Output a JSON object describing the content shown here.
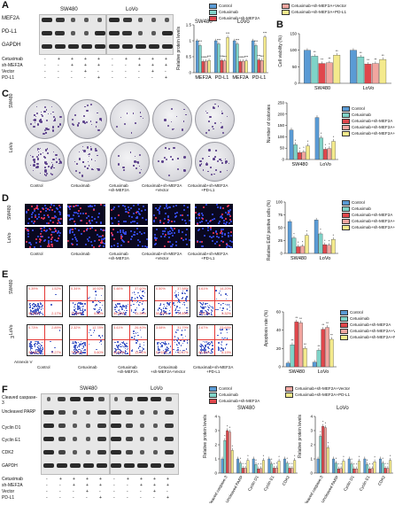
{
  "panels": {
    "A": "A",
    "B": "B",
    "C": "C",
    "D": "D",
    "E": "E",
    "F": "F"
  },
  "colors": {
    "control": "#5a9bd5",
    "cetuximab": "#7fd3c8",
    "sh": "#e0474c",
    "vector": "#f2a6a0",
    "pdl1": "#f4ea8c"
  },
  "legend": {
    "control": "Control",
    "cetuximab": "Cetuximab",
    "sh": "Cetuximab+sh-MEF2A",
    "vector": "Cetuximab+sh-MEF2A+Vector",
    "pdl1": "Cetuximab+sh-MEF2A+PD-L1"
  },
  "cell_lines": {
    "sw480": "SW480",
    "lovo": "LoVo"
  },
  "panel_a": {
    "blot_labels": [
      "MEF2A",
      "PD-L1",
      "GAPDH"
    ],
    "treat_rows": [
      "Cetuximab",
      "sh-MEF2A",
      "Vector",
      "PD-L1"
    ],
    "treat_signs": [
      [
        "-",
        "+",
        "+",
        "+",
        "+"
      ],
      [
        "-",
        "-",
        "+",
        "+",
        "+"
      ],
      [
        "-",
        "-",
        "-",
        "+",
        "-"
      ],
      [
        "-",
        "-",
        "-",
        "-",
        "+"
      ]
    ],
    "ylabel": "Relative protein levels",
    "xticks": [
      "MEF2A",
      "PD-L1",
      "MEF2A",
      "PD-L1"
    ],
    "sig": "***"
  },
  "panel_b": {
    "ylabel": "Cell viability (%)",
    "sig": "**"
  },
  "panel_c": {
    "row_labels": [
      "SW480",
      "LoVo"
    ],
    "col_labels": [
      "Control",
      "Cetuximab",
      "Cetuximab\n+sh-MEF2A",
      "Cetuximab+sh-MEF2A\n+Vector",
      "Cetuximab+sh-MEF2A\n+PD-L1"
    ],
    "ylabel": "Number of colonies"
  },
  "panel_d": {
    "row_labels": [
      "SW480",
      "LoVo"
    ],
    "col_labels": [
      "Control",
      "Cetuximab",
      "Cetuximab\n+sh-MEF2A",
      "Cetuximab+sh-MEF2A\n+Vector",
      "Cetuximab+sh-MEF2A\n+PD-L1"
    ],
    "ylabel": "Relative EdU positive cells (%)"
  },
  "panel_e": {
    "row_labels": [
      "SW480",
      "LoVo"
    ],
    "col_labels": [
      "Control",
      "Cetuximab",
      "Cetuximab\n+sh-MEF2A",
      "Cetuximab\n+sh-MEF2A+Vector",
      "Cetuximab+sh-MEF2A\n+PD-L1"
    ],
    "axis_y": "PI",
    "axis_x": "Annexin V",
    "quadrants": [
      [
        [
          "0.39%",
          "1.52%",
          "96.82%",
          "2.17%"
        ],
        [
          "0.34%",
          "16.92%",
          "72.54%",
          "6.80%"
        ],
        [
          "0.46%",
          "37.60%",
          "50.55%",
          "11.39%"
        ],
        [
          "0.50%",
          "37.58%",
          "50.02%",
          "11.89%"
        ],
        [
          "0.61%",
          "14.20%",
          "79.87%",
          "5.32%"
        ]
      ],
      [
        [
          "0.73%",
          "2.89%",
          "94.65%",
          "2.27%"
        ],
        [
          "2.32%",
          "12.78%",
          "79.50%",
          "5.60%"
        ],
        [
          "3.41%",
          "26.40%",
          "63.59%",
          "13.01%"
        ],
        [
          "3.08%",
          "31.79%",
          "51.92%",
          "12.57%"
        ],
        [
          "2.67%",
          "23.69%",
          "66.44%",
          "8.19%"
        ]
      ]
    ],
    "ylabel": "Apoptosis rate (%)"
  },
  "panel_f": {
    "blot_labels": [
      "Cleaved caspase-3",
      "Uncleaved PARP",
      "Cyclin D1",
      "Cyclin E1",
      "CDK2",
      "GAPDH"
    ],
    "treat_rows": [
      "Cetuximab",
      "sh-MEF2A",
      "Vector",
      "PD-L1"
    ],
    "treat_signs": [
      [
        "-",
        "+",
        "+",
        "+",
        "+"
      ],
      [
        "-",
        "-",
        "+",
        "+",
        "+"
      ],
      [
        "-",
        "-",
        "-",
        "+",
        "-"
      ],
      [
        "-",
        "-",
        "-",
        "-",
        "+"
      ]
    ],
    "ylabel": "Relative protein levels",
    "xticks": [
      "Cleaved caspase-3",
      "Uncleaved PARP",
      "Cyclin D1",
      "Cyclin E1",
      "CDK2"
    ]
  },
  "chart_data": [
    {
      "type": "bar",
      "id": "A",
      "ylabel": "Relative protein levels",
      "ylim": [
        0,
        1.5
      ],
      "groups": [
        "SW480",
        "LoVo"
      ],
      "categories": [
        "MEF2A",
        "PD-L1",
        "MEF2A",
        "PD-L1"
      ],
      "series": [
        {
          "name": "Control",
          "values": [
            1.0,
            1.0,
            1.0,
            1.0
          ]
        },
        {
          "name": "Cetuximab",
          "values": [
            0.85,
            0.9,
            0.9,
            0.85
          ]
        },
        {
          "name": "Cetuximab+sh-MEF2A",
          "values": [
            0.35,
            0.38,
            0.35,
            0.4
          ]
        },
        {
          "name": "Cetuximab+sh-MEF2A+Vector",
          "values": [
            0.36,
            0.37,
            0.36,
            0.38
          ]
        },
        {
          "name": "Cetuximab+sh-MEF2A+PD-L1",
          "values": [
            0.38,
            1.1,
            0.37,
            1.12
          ]
        }
      ]
    },
    {
      "type": "bar",
      "id": "B",
      "ylabel": "Cell viability (%)",
      "ylim": [
        0,
        150
      ],
      "categories": [
        "SW480",
        "LoVo"
      ],
      "series": [
        {
          "name": "Control",
          "values": [
            100,
            100
          ]
        },
        {
          "name": "Cetuximab",
          "values": [
            82,
            80
          ]
        },
        {
          "name": "Cetuximab+sh-MEF2A",
          "values": [
            60,
            58
          ]
        },
        {
          "name": "Cetuximab+sh-MEF2A+Vector",
          "values": [
            62,
            60
          ]
        },
        {
          "name": "Cetuximab+sh-MEF2A+PD-L1",
          "values": [
            85,
            72
          ]
        }
      ]
    },
    {
      "type": "bar",
      "id": "C",
      "ylabel": "Number of colonies",
      "ylim": [
        0,
        250
      ],
      "categories": [
        "SW480",
        "LoVo"
      ],
      "series": [
        {
          "name": "Control",
          "values": [
            130,
            185
          ]
        },
        {
          "name": "Cetuximab",
          "values": [
            65,
            95
          ]
        },
        {
          "name": "Cetuximab+sh-MEF2A",
          "values": [
            30,
            45
          ]
        },
        {
          "name": "Cetuximab+sh-MEF2A+Vector",
          "values": [
            32,
            48
          ]
        },
        {
          "name": "Cetuximab+sh-MEF2A+PD-L1",
          "values": [
            60,
            80
          ]
        }
      ]
    },
    {
      "type": "bar",
      "id": "D",
      "ylabel": "Relative EdU positive cells (%)",
      "ylim": [
        0,
        100
      ],
      "categories": [
        "SW480",
        "LoVo"
      ],
      "series": [
        {
          "name": "Control",
          "values": [
            62,
            65
          ]
        },
        {
          "name": "Cetuximab",
          "values": [
            30,
            38
          ]
        },
        {
          "name": "Cetuximab+sh-MEF2A",
          "values": [
            13,
            17
          ]
        },
        {
          "name": "Cetuximab+sh-MEF2A+Vector",
          "values": [
            14,
            16
          ]
        },
        {
          "name": "Cetuximab+sh-MEF2A+PD-L1",
          "values": [
            35,
            27
          ]
        }
      ]
    },
    {
      "type": "bar",
      "id": "E",
      "ylabel": "Apoptosis rate (%)",
      "ylim": [
        0,
        60
      ],
      "categories": [
        "SW480",
        "LoVo"
      ],
      "series": [
        {
          "name": "Control",
          "values": [
            4,
            5
          ]
        },
        {
          "name": "Cetuximab",
          "values": [
            24,
            18
          ]
        },
        {
          "name": "Cetuximab+sh-MEF2A",
          "values": [
            49,
            41
          ]
        },
        {
          "name": "Cetuximab+sh-MEF2A+Vector",
          "values": [
            48,
            43
          ]
        },
        {
          "name": "Cetuximab+sh-MEF2A+PD-L1",
          "values": [
            20,
            30
          ]
        }
      ]
    },
    {
      "type": "bar",
      "id": "F-SW480",
      "title": "SW480",
      "ylabel": "Relative protein levels",
      "ylim": [
        0,
        4
      ],
      "categories": [
        "Cleaved caspase-3",
        "Uncleaved PARP",
        "Cyclin D1",
        "Cyclin E1",
        "CDK2"
      ],
      "series": [
        {
          "name": "Control",
          "values": [
            1,
            1,
            1,
            1,
            1
          ]
        },
        {
          "name": "Cetuximab",
          "values": [
            2.3,
            0.7,
            0.6,
            0.65,
            0.7
          ]
        },
        {
          "name": "Cetuximab+sh-MEF2A",
          "values": [
            3.0,
            0.35,
            0.3,
            0.35,
            0.35
          ]
        },
        {
          "name": "Cetuximab+sh-MEF2A+Vector",
          "values": [
            2.9,
            0.35,
            0.32,
            0.36,
            0.34
          ]
        },
        {
          "name": "Cetuximab+sh-MEF2A+PD-L1",
          "values": [
            1.6,
            0.9,
            0.9,
            0.85,
            0.9
          ]
        }
      ]
    },
    {
      "type": "bar",
      "id": "F-LoVo",
      "title": "LoVo",
      "ylabel": "Relative protein levels",
      "ylim": [
        0,
        4
      ],
      "categories": [
        "Cleaved caspase-3",
        "Uncleaved PARP",
        "Cyclin D1",
        "Cyclin E1",
        "CDK2"
      ],
      "series": [
        {
          "name": "Control",
          "values": [
            1,
            1,
            1,
            1,
            1
          ]
        },
        {
          "name": "Cetuximab",
          "values": [
            2.6,
            0.7,
            0.65,
            0.6,
            0.7
          ]
        },
        {
          "name": "Cetuximab+sh-MEF2A",
          "values": [
            3.3,
            0.3,
            0.3,
            0.3,
            0.35
          ]
        },
        {
          "name": "Cetuximab+sh-MEF2A+Vector",
          "values": [
            3.2,
            0.32,
            0.3,
            0.32,
            0.33
          ]
        },
        {
          "name": "Cetuximab+sh-MEF2A+PD-L1",
          "values": [
            1.8,
            0.85,
            0.85,
            0.8,
            0.9
          ]
        }
      ]
    }
  ]
}
